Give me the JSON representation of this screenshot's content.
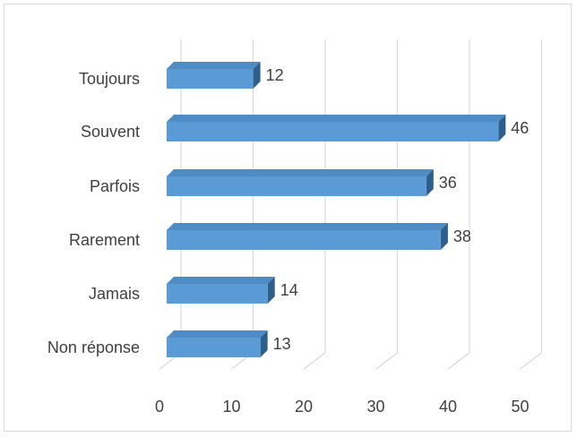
{
  "chart_data": {
    "type": "bar",
    "orientation": "horizontal",
    "style": "3d",
    "categories": [
      "Toujours",
      "Souvent",
      "Parfois",
      "Rarement",
      "Jamais",
      "Non réponse"
    ],
    "values": [
      12,
      46,
      36,
      38,
      14,
      13
    ],
    "xlim": [
      0,
      50
    ],
    "xticks": [
      "0",
      "10",
      "20",
      "30",
      "40",
      "50"
    ],
    "data_labels": [
      "12",
      "46",
      "36",
      "38",
      "14",
      "13"
    ],
    "grid": "vertical",
    "legend": "none",
    "colors": {
      "bar_front": "#5b9bd5",
      "bar_top": "#4f8bc4",
      "bar_side": "#2e5f8c",
      "grid": "#d9d9d9",
      "text": "#404040",
      "border": "#d9d9d9"
    }
  }
}
